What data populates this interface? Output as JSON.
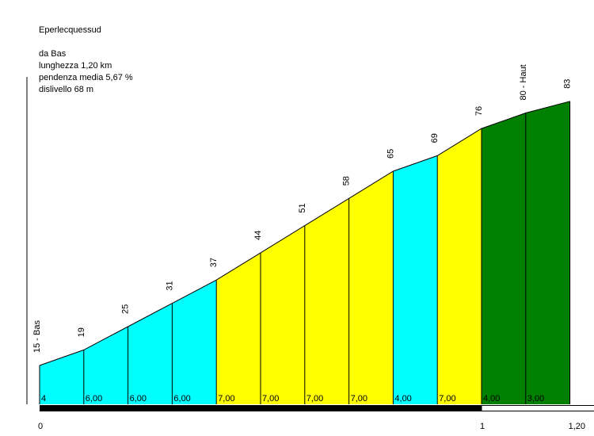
{
  "header": {
    "name": "Eperlecquessud",
    "from": "da Bas",
    "length": "lunghezza 1,20 km",
    "avg_gradient": "pendenza media 5,67 %",
    "elevation_gain": "dislivello 68 m"
  },
  "chart_data": {
    "type": "area",
    "title": "Eperlecquessud",
    "x_unit": "km",
    "xlim": [
      0,
      1.2
    ],
    "ylim": [
      15,
      83
    ],
    "x": [
      0,
      0.1,
      0.2,
      0.3,
      0.4,
      0.5,
      0.6,
      0.7,
      0.8,
      0.9,
      1.0,
      1.1,
      1.2
    ],
    "altitudes": [
      15,
      19,
      25,
      31,
      37,
      44,
      51,
      58,
      65,
      69,
      76,
      80,
      83
    ],
    "altitude_labels": [
      "15 - Bas",
      "19",
      "25",
      "31",
      "37",
      "44",
      "51",
      "58",
      "65",
      "69",
      "76",
      "80 - Haut",
      "83"
    ],
    "gradient_labels": [
      "4",
      "6,00",
      "6,00",
      "6,00",
      "7,00",
      "7,00",
      "7,00",
      "7,00",
      "4,00",
      "7,00",
      "4,00",
      "3,00"
    ],
    "segment_colors": [
      "#00ffff",
      "#00ffff",
      "#00ffff",
      "#00ffff",
      "#ffff00",
      "#ffff00",
      "#ffff00",
      "#ffff00",
      "#00ffff",
      "#ffff00",
      "#008000",
      "#008000"
    ],
    "km_ticks": [
      0,
      1,
      1.2
    ],
    "km_tick_labels": [
      "0",
      "1",
      "1,20"
    ]
  }
}
